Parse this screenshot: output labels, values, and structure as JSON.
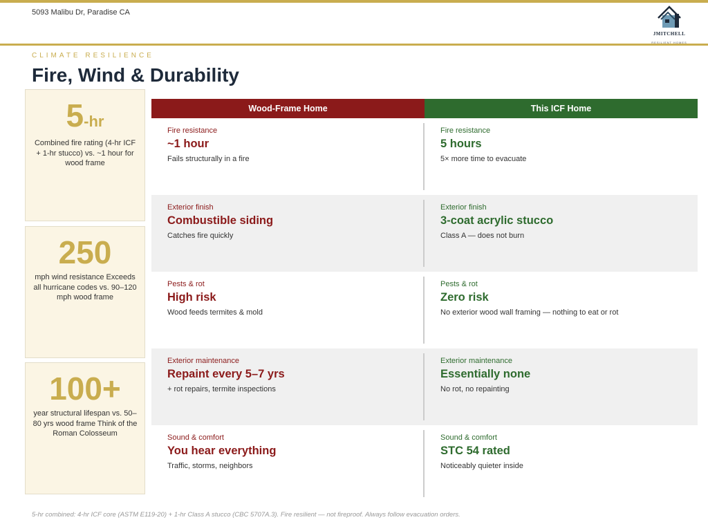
{
  "header": {
    "address": "5093 Malibu Dr, Paradise CA",
    "logo_name": "JMITCHELL",
    "logo_sub": "RESILIENT HOMES"
  },
  "eyebrow": "CLIMATE RESILIENCE",
  "title": "Fire, Wind & Durability",
  "cards": [
    {
      "big": "5",
      "unit": "-hr",
      "desc": "Combined fire rating (4-hr ICF + 1-hr stucco) vs. ~1 hour for wood frame"
    },
    {
      "big": "250",
      "unit": "",
      "desc": "mph wind resistance Exceeds all hurricane codes vs. 90–120 mph wood frame"
    },
    {
      "big": "100+",
      "unit": "",
      "desc": "year structural lifespan vs. 50–80 yrs wood frame Think of the Roman Colosseum"
    }
  ],
  "table": {
    "headers": [
      "Wood-Frame Home",
      "This ICF Home"
    ],
    "rows": [
      {
        "left": {
          "label": "Fire resistance",
          "value": "~1 hour",
          "sub": "Fails structurally in a fire"
        },
        "right": {
          "label": "Fire resistance",
          "value": "5 hours",
          "sub": "5× more time to evacuate"
        }
      },
      {
        "left": {
          "label": "Exterior finish",
          "value": "Combustible siding",
          "sub": "Catches fire quickly"
        },
        "right": {
          "label": "Exterior finish",
          "value": "3-coat acrylic stucco",
          "sub": "Class A — does not burn"
        }
      },
      {
        "left": {
          "label": "Pests & rot",
          "value": "High risk",
          "sub": "Wood feeds termites & mold"
        },
        "right": {
          "label": "Pests & rot",
          "value": "Zero risk",
          "sub": "No exterior wood wall framing — nothing to eat or rot"
        }
      },
      {
        "left": {
          "label": "Exterior maintenance",
          "value": "Repaint every 5–7 yrs",
          "sub": "+ rot repairs, termite inspections"
        },
        "right": {
          "label": "Exterior maintenance",
          "value": "Essentially none",
          "sub": "No rot, no repainting"
        }
      },
      {
        "left": {
          "label": "Sound & comfort",
          "value": "You hear everything",
          "sub": "Traffic, storms, neighbors"
        },
        "right": {
          "label": "Sound & comfort",
          "value": "STC 54 rated",
          "sub": "Noticeably quieter inside"
        }
      }
    ]
  },
  "footer": "5-hr combined: 4-hr ICF core (ASTM E119-20) + 1-hr Class A stucco (CBC 5707A.3). Fire resilient — not fireproof. Always follow evacuation orders.",
  "colors": {
    "gold": "#c9ad4f",
    "wood_red": "#8b1a1a",
    "icf_green": "#2e6b2e",
    "navy": "#1e2a3a"
  }
}
